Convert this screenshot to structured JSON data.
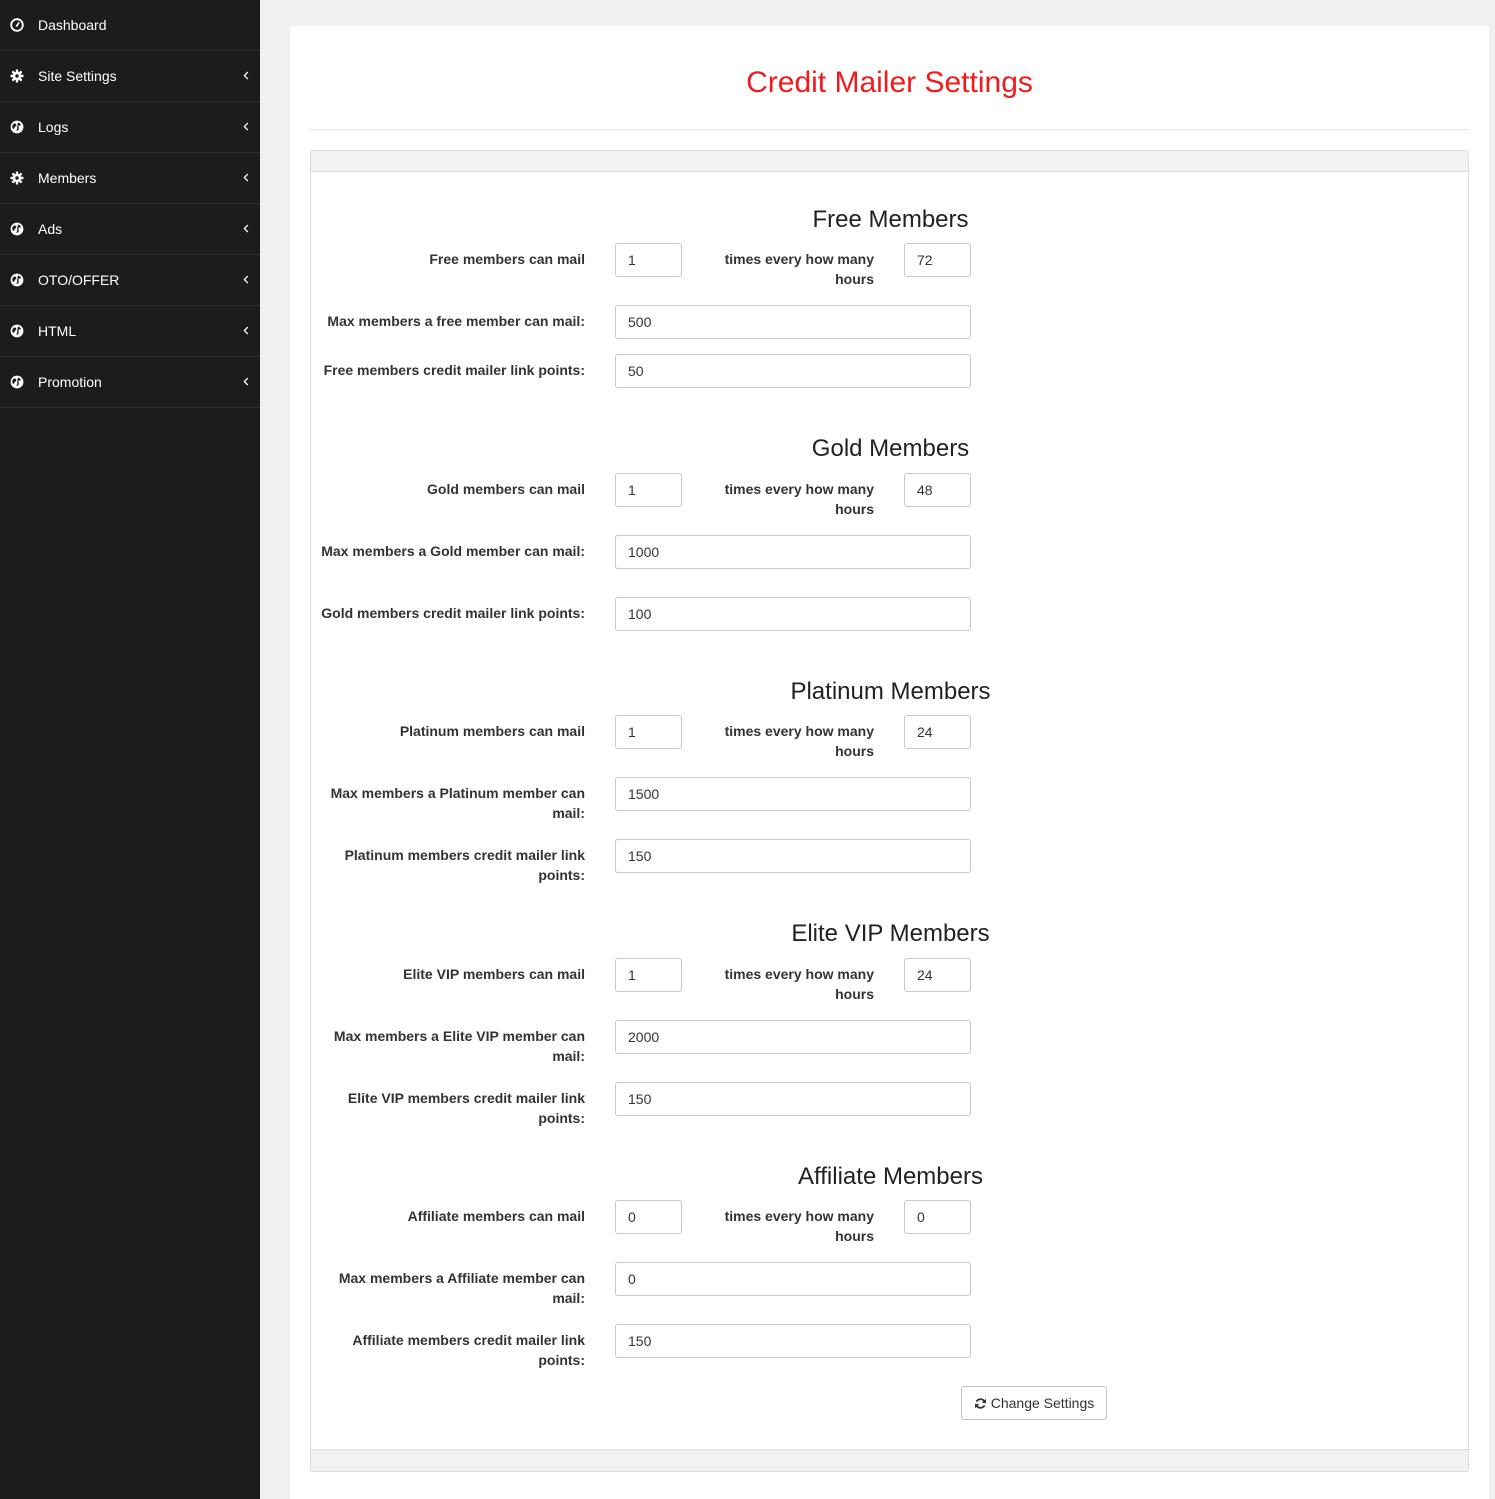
{
  "sidebar": {
    "items": [
      {
        "label": "Dashboard",
        "icon": "dashboard-icon",
        "has_caret": false
      },
      {
        "label": "Site Settings",
        "icon": "gear-icon",
        "has_caret": true
      },
      {
        "label": "Logs",
        "icon": "globe-icon",
        "has_caret": true
      },
      {
        "label": "Members",
        "icon": "gear-icon",
        "has_caret": true
      },
      {
        "label": "Ads",
        "icon": "globe-icon",
        "has_caret": true
      },
      {
        "label": "OTO/OFFER",
        "icon": "globe-icon",
        "has_caret": true
      },
      {
        "label": "HTML",
        "icon": "globe-icon",
        "has_caret": true
      },
      {
        "label": "Promotion",
        "icon": "globe-icon",
        "has_caret": true
      }
    ]
  },
  "page": {
    "title": "Credit Mailer Settings",
    "title_color": "#ee1c1c"
  },
  "sections": [
    {
      "title": "Free Members",
      "mail_label": "Free members can mail",
      "times_label": "times every how many hours",
      "mail_times": "1",
      "hours": "72",
      "max_label": "Max members a free member can mail:",
      "max_value": "500",
      "points_label": "Free members credit mailer link points:",
      "points_value": "50"
    },
    {
      "title": "Gold Members",
      "mail_label": "Gold members can mail",
      "times_label": "times every how many hours",
      "mail_times": "1",
      "hours": "48",
      "max_label": "Max members a Gold member can mail:",
      "max_value": "1000",
      "points_label": "Gold members credit mailer link points:",
      "points_value": "100"
    },
    {
      "title": "Platinum Members",
      "mail_label": "Platinum members can mail",
      "times_label": "times every how many hours",
      "mail_times": "1",
      "hours": "24",
      "max_label": "Max members a Platinum member can mail:",
      "max_value": "1500",
      "points_label": "Platinum members credit mailer link points:",
      "points_value": "150"
    },
    {
      "title": "Elite VIP Members",
      "mail_label": "Elite VIP members can mail",
      "times_label": "times every how many hours",
      "mail_times": "1",
      "hours": "24",
      "max_label": "Max members a Elite VIP member can mail:",
      "max_value": "2000",
      "points_label": "Elite VIP members credit mailer link points:",
      "points_value": "150"
    },
    {
      "title": "Affiliate Members",
      "mail_label": "Affiliate members can mail",
      "times_label": "times every how many hours",
      "mail_times": "0",
      "hours": "0",
      "max_label": "Max members a Affiliate member can mail:",
      "max_value": "0",
      "points_label": "Affiliate members credit mailer link points:",
      "points_value": "150"
    }
  ],
  "submit": {
    "label": "Change Settings",
    "icon": "refresh-icon"
  }
}
